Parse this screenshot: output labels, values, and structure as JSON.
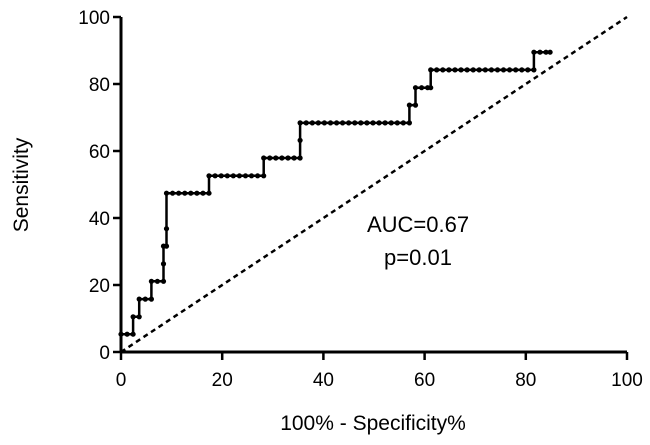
{
  "chart_data": {
    "type": "line",
    "title": "",
    "xlabel": "100% - Specificity%",
    "ylabel": "Sensitivity",
    "xlim": [
      0,
      100
    ],
    "ylim": [
      0,
      100
    ],
    "x_ticks": [
      0,
      20,
      40,
      60,
      80,
      100
    ],
    "y_ticks": [
      0,
      20,
      40,
      60,
      80,
      100
    ],
    "grid": false,
    "legend": "none",
    "annotations": [
      "AUC=0.67",
      "p=0.01"
    ],
    "colors": {
      "curve": "#000000",
      "reference": "#000000"
    },
    "series": [
      {
        "style": "solid-step-with-markers",
        "points": [
          [
            0,
            5.3
          ],
          [
            1.2,
            5.3
          ],
          [
            2.4,
            5.3
          ],
          [
            2.4,
            10.5
          ],
          [
            3.6,
            10.5
          ],
          [
            3.6,
            15.8
          ],
          [
            4.8,
            15.8
          ],
          [
            6.0,
            15.8
          ],
          [
            6.0,
            21.1
          ],
          [
            7.2,
            21.1
          ],
          [
            8.4,
            21.1
          ],
          [
            8.4,
            26.3
          ],
          [
            8.4,
            31.6
          ],
          [
            9.0,
            31.6
          ],
          [
            9.0,
            36.8
          ],
          [
            9.0,
            47.4
          ],
          [
            10.2,
            47.4
          ],
          [
            11.4,
            47.4
          ],
          [
            12.6,
            47.4
          ],
          [
            13.8,
            47.4
          ],
          [
            15.0,
            47.4
          ],
          [
            16.2,
            47.4
          ],
          [
            17.4,
            47.4
          ],
          [
            17.4,
            52.6
          ],
          [
            18.6,
            52.6
          ],
          [
            19.8,
            52.6
          ],
          [
            21.0,
            52.6
          ],
          [
            22.2,
            52.6
          ],
          [
            23.4,
            52.6
          ],
          [
            24.6,
            52.6
          ],
          [
            25.8,
            52.6
          ],
          [
            27.0,
            52.6
          ],
          [
            28.2,
            52.6
          ],
          [
            28.2,
            57.9
          ],
          [
            29.4,
            57.9
          ],
          [
            30.6,
            57.9
          ],
          [
            31.8,
            57.9
          ],
          [
            33.0,
            57.9
          ],
          [
            34.2,
            57.9
          ],
          [
            35.4,
            57.9
          ],
          [
            35.4,
            63.2
          ],
          [
            35.4,
            68.4
          ],
          [
            36.6,
            68.4
          ],
          [
            37.8,
            68.4
          ],
          [
            39.0,
            68.4
          ],
          [
            40.2,
            68.4
          ],
          [
            41.4,
            68.4
          ],
          [
            42.6,
            68.4
          ],
          [
            43.8,
            68.4
          ],
          [
            45.0,
            68.4
          ],
          [
            46.2,
            68.4
          ],
          [
            47.4,
            68.4
          ],
          [
            48.6,
            68.4
          ],
          [
            49.8,
            68.4
          ],
          [
            51.0,
            68.4
          ],
          [
            52.2,
            68.4
          ],
          [
            53.4,
            68.4
          ],
          [
            54.6,
            68.4
          ],
          [
            55.8,
            68.4
          ],
          [
            57.0,
            68.4
          ],
          [
            57.0,
            73.7
          ],
          [
            58.2,
            73.7
          ],
          [
            58.2,
            78.9
          ],
          [
            59.4,
            78.9
          ],
          [
            60.6,
            78.9
          ],
          [
            61.2,
            78.9
          ],
          [
            61.2,
            84.2
          ],
          [
            62.4,
            84.2
          ],
          [
            63.6,
            84.2
          ],
          [
            64.8,
            84.2
          ],
          [
            66.0,
            84.2
          ],
          [
            67.2,
            84.2
          ],
          [
            68.4,
            84.2
          ],
          [
            69.6,
            84.2
          ],
          [
            70.8,
            84.2
          ],
          [
            72.0,
            84.2
          ],
          [
            73.2,
            84.2
          ],
          [
            74.4,
            84.2
          ],
          [
            75.6,
            84.2
          ],
          [
            76.8,
            84.2
          ],
          [
            78.0,
            84.2
          ],
          [
            79.2,
            84.2
          ],
          [
            80.4,
            84.2
          ],
          [
            81.6,
            84.2
          ],
          [
            81.6,
            89.5
          ],
          [
            82.8,
            89.5
          ],
          [
            84.0,
            89.5
          ],
          [
            84.8,
            89.5
          ]
        ]
      },
      {
        "style": "dashed-diagonal",
        "points": [
          [
            0,
            0
          ],
          [
            100,
            100
          ]
        ]
      }
    ]
  }
}
